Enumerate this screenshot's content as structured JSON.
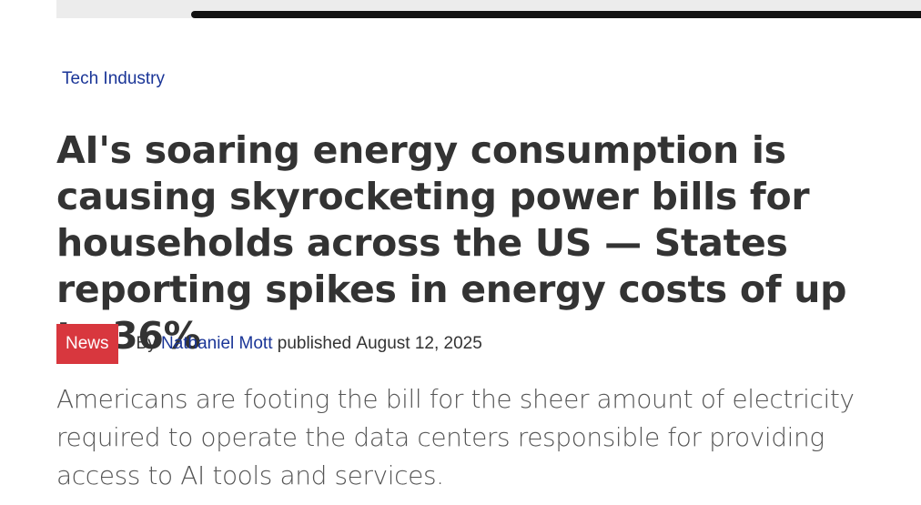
{
  "article": {
    "category": "Tech Industry",
    "headline": "AI's soaring energy consumption is causing skyrocketing power bills for households across the US — States reporting spikes in energy costs of up to 36%",
    "badge": "News",
    "byline_prefix": "By",
    "author": "Nathaniel Mott",
    "published_prefix": "published",
    "published_date": "August 12, 2025",
    "standfirst": "Americans are footing the bill for the sheer amount of electricity required to operate the data centers responsible for providing access to AI tools and services."
  },
  "colors": {
    "link": "#1a3597",
    "badge_bg": "#d8373e",
    "text": "#333333",
    "progress": "#111111"
  }
}
